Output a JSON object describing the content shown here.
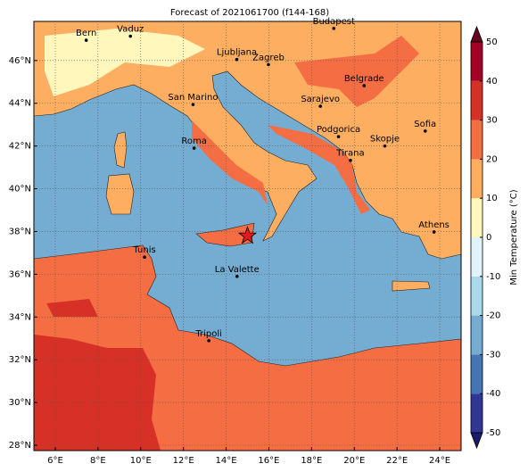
{
  "title": "Forecast of 2021061700 (f144-168)",
  "map": {
    "xlim": [
      5,
      25
    ],
    "ylim": [
      27.75,
      47.83
    ],
    "xticks": [
      {
        "value": 6,
        "label": "6°E"
      },
      {
        "value": 8,
        "label": "8°E"
      },
      {
        "value": 10,
        "label": "10°E"
      },
      {
        "value": 12,
        "label": "12°E"
      },
      {
        "value": 14,
        "label": "14°E"
      },
      {
        "value": 16,
        "label": "16°E"
      },
      {
        "value": 18,
        "label": "18°E"
      },
      {
        "value": 20,
        "label": "20°E"
      },
      {
        "value": 22,
        "label": "22°E"
      },
      {
        "value": 24,
        "label": "24°E"
      }
    ],
    "yticks": [
      {
        "value": 28,
        "label": "28°N"
      },
      {
        "value": 30,
        "label": "30°N"
      },
      {
        "value": 32,
        "label": "32°N"
      },
      {
        "value": 34,
        "label": "34°N"
      },
      {
        "value": 36,
        "label": "36°N"
      },
      {
        "value": 38,
        "label": "38°N"
      },
      {
        "value": 40,
        "label": "40°N"
      },
      {
        "value": 42,
        "label": "42°N"
      },
      {
        "value": 44,
        "label": "44°N"
      },
      {
        "value": 46,
        "label": "46°N"
      }
    ],
    "grid": true,
    "cities": [
      {
        "name": "Bern",
        "lon": 7.45,
        "lat": 46.95
      },
      {
        "name": "Vaduz",
        "lon": 9.52,
        "lat": 47.14
      },
      {
        "name": "Budapest",
        "lon": 19.04,
        "lat": 47.5
      },
      {
        "name": "Ljubljana",
        "lon": 14.5,
        "lat": 46.05
      },
      {
        "name": "Zagreb",
        "lon": 15.98,
        "lat": 45.81
      },
      {
        "name": "Belgrade",
        "lon": 20.46,
        "lat": 44.82
      },
      {
        "name": "San Marino",
        "lon": 12.45,
        "lat": 43.94
      },
      {
        "name": "Sarajevo",
        "lon": 18.41,
        "lat": 43.86
      },
      {
        "name": "Sofia",
        "lon": 23.32,
        "lat": 42.7
      },
      {
        "name": "Podgorica",
        "lon": 19.26,
        "lat": 42.44
      },
      {
        "name": "Skopje",
        "lon": 21.43,
        "lat": 42.0
      },
      {
        "name": "Roma",
        "lon": 12.5,
        "lat": 41.9
      },
      {
        "name": "Tirana",
        "lon": 19.82,
        "lat": 41.33
      },
      {
        "name": "Athens",
        "lon": 23.73,
        "lat": 37.98
      },
      {
        "name": "Tunis",
        "lon": 10.18,
        "lat": 36.8
      },
      {
        "name": "La Valette",
        "lon": 14.51,
        "lat": 35.9
      },
      {
        "name": "Tripoli",
        "lon": 13.19,
        "lat": 32.89
      }
    ],
    "marker": {
      "lon": 15.0,
      "lat": 37.8,
      "color": "#e31a1c"
    }
  },
  "colorbar": {
    "label": "Min Temperature (°C)",
    "levels": [
      -50,
      -40,
      -30,
      -20,
      -10,
      0,
      10,
      20,
      30,
      40,
      50
    ],
    "colors": [
      "#313695",
      "#4575b4",
      "#74add1",
      "#abd9e9",
      "#e0f3f8",
      "#fff7bc",
      "#fdae61",
      "#f46d43",
      "#d73027",
      "#a50026"
    ],
    "under": "#1a1a6e",
    "over": "#67001f",
    "ticks": [
      -50,
      -40,
      -30,
      -20,
      -10,
      0,
      10,
      20,
      30,
      40,
      50
    ]
  }
}
